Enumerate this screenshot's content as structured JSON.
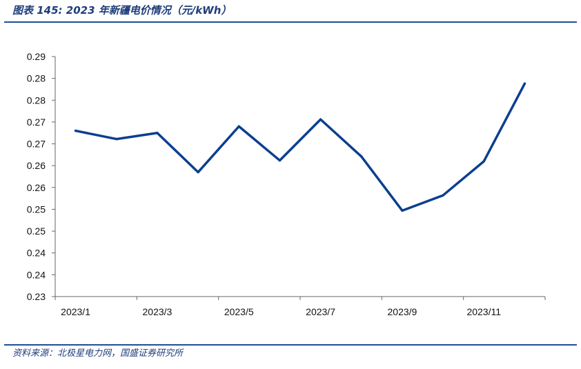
{
  "header": {
    "title": "图表 145:  2023 年新疆电价情况（元/kWh）"
  },
  "footer": {
    "source": "资料来源：北极星电力网，国盛证券研究所"
  },
  "colors": {
    "line": "#0b3f8f",
    "rule": "#1f4e9a",
    "text": "#1f3d7a"
  },
  "chart_data": {
    "type": "line",
    "title": "",
    "xlabel": "",
    "ylabel": "",
    "x": [
      "2023/1",
      "2023/2",
      "2023/3",
      "2023/4",
      "2023/5",
      "2023/6",
      "2023/7",
      "2023/8",
      "2023/9",
      "2023/10",
      "2023/11",
      "2023/12"
    ],
    "x_tick_labels": [
      "2023/1",
      "2023/3",
      "2023/5",
      "2023/7",
      "2023/9",
      "2023/11"
    ],
    "y_tick_labels": [
      "0.29",
      "0.28",
      "0.28",
      "0.27",
      "0.27",
      "0.26",
      "0.26",
      "0.25",
      "0.25",
      "0.24",
      "0.24",
      "0.23"
    ],
    "series": [
      {
        "values": [
          0.268,
          0.2661,
          0.2675,
          0.2585,
          0.269,
          0.2612,
          0.2706,
          0.2621,
          0.2497,
          0.2532,
          0.261,
          0.2788
        ]
      }
    ],
    "ylim": [
      0.23,
      0.285
    ],
    "grid": false,
    "legend": "none"
  }
}
